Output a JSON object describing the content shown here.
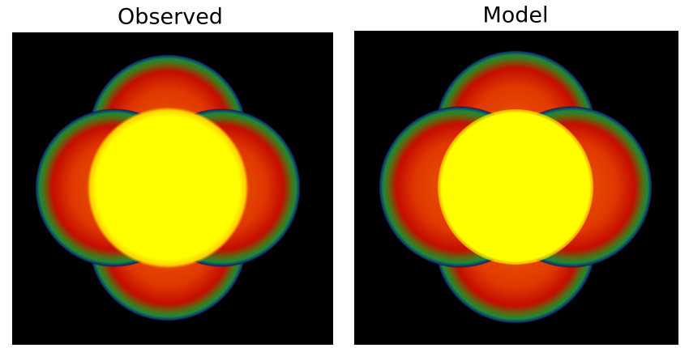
{
  "panels": [
    {
      "title": "Observed"
    },
    {
      "title": "Model"
    }
  ]
}
